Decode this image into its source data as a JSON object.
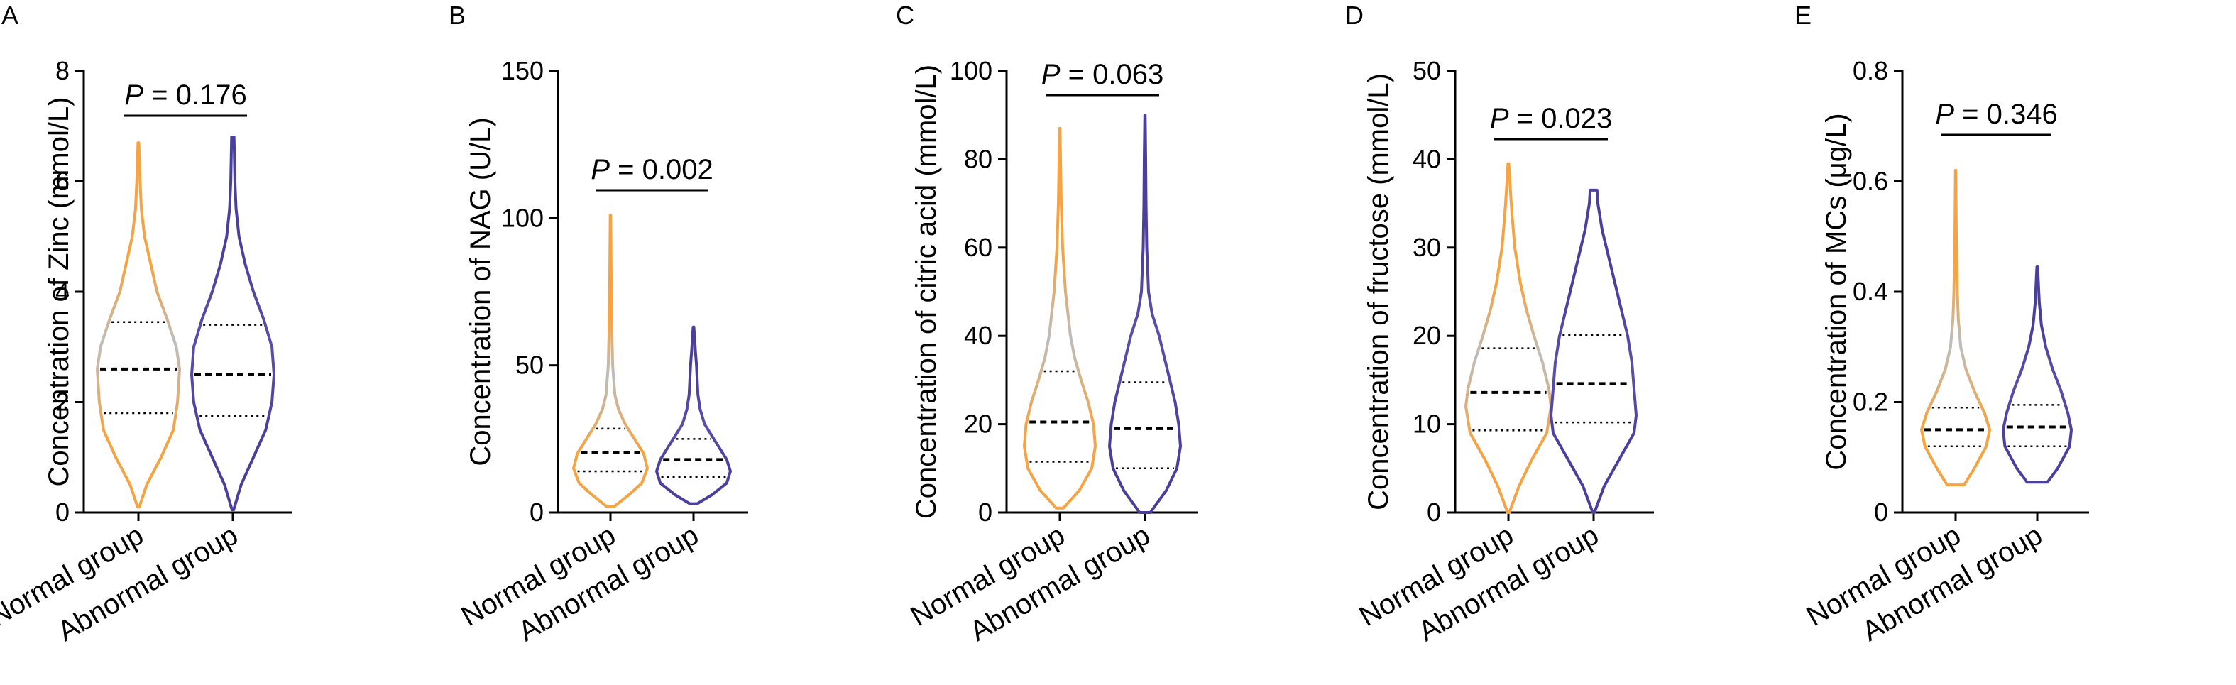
{
  "chart_data": [
    {
      "type": "violin",
      "panel": "A",
      "ylabel": "Concentration of Zinc (mmol/L)",
      "ylim": [
        0,
        8
      ],
      "yticks": [
        0,
        2,
        4,
        6,
        8
      ],
      "categories": [
        "Normal group",
        "Abnormal group"
      ],
      "colors": [
        "#F6A343",
        "#4B3F9E"
      ],
      "annotation": {
        "italic": "P",
        "text": " = 0.176"
      },
      "series": [
        {
          "min": 0.1,
          "max": 6.7,
          "q1": 1.8,
          "median": 2.6,
          "q3": 3.45,
          "profile": [
            [
              0.1,
              0.02
            ],
            [
              0.5,
              0.2
            ],
            [
              1.0,
              0.55
            ],
            [
              1.5,
              0.85
            ],
            [
              2.0,
              0.95
            ],
            [
              2.6,
              1.0
            ],
            [
              3.0,
              0.92
            ],
            [
              3.5,
              0.7
            ],
            [
              4.0,
              0.45
            ],
            [
              4.5,
              0.3
            ],
            [
              5.0,
              0.15
            ],
            [
              5.5,
              0.07
            ],
            [
              6.0,
              0.04
            ],
            [
              6.7,
              0.01
            ]
          ]
        },
        {
          "min": 0.05,
          "max": 6.8,
          "q1": 1.75,
          "median": 2.5,
          "q3": 3.4,
          "profile": [
            [
              0.05,
              0.02
            ],
            [
              0.5,
              0.2
            ],
            [
              1.0,
              0.5
            ],
            [
              1.5,
              0.8
            ],
            [
              2.0,
              0.95
            ],
            [
              2.5,
              1.0
            ],
            [
              3.0,
              0.95
            ],
            [
              3.5,
              0.75
            ],
            [
              4.0,
              0.5
            ],
            [
              4.5,
              0.3
            ],
            [
              5.0,
              0.15
            ],
            [
              5.5,
              0.08
            ],
            [
              6.0,
              0.05
            ],
            [
              6.8,
              0.03
            ]
          ]
        }
      ]
    },
    {
      "type": "violin",
      "panel": "B",
      "ylabel": "Concentration of NAG (U/L)",
      "ylim": [
        0,
        150
      ],
      "yticks": [
        0,
        50,
        100,
        150
      ],
      "categories": [
        "Normal group",
        "Abnormal group"
      ],
      "colors": [
        "#F6A343",
        "#4B3F9E"
      ],
      "annotation": {
        "italic": "P",
        "text": " = 0.002"
      },
      "series": [
        {
          "min": 2,
          "max": 101,
          "q1": 14,
          "median": 20.5,
          "q3": 28.5,
          "profile": [
            [
              2,
              0.1
            ],
            [
              6,
              0.5
            ],
            [
              10,
              0.85
            ],
            [
              15,
              1.0
            ],
            [
              20,
              0.9
            ],
            [
              25,
              0.65
            ],
            [
              30,
              0.4
            ],
            [
              35,
              0.22
            ],
            [
              40,
              0.12
            ],
            [
              50,
              0.06
            ],
            [
              60,
              0.04
            ],
            [
              80,
              0.02
            ],
            [
              101,
              0.005
            ]
          ]
        },
        {
          "min": 3,
          "max": 63,
          "q1": 12,
          "median": 18,
          "q3": 25,
          "profile": [
            [
              3,
              0.1
            ],
            [
              6,
              0.5
            ],
            [
              10,
              0.9
            ],
            [
              14,
              1.0
            ],
            [
              18,
              0.9
            ],
            [
              22,
              0.7
            ],
            [
              26,
              0.5
            ],
            [
              30,
              0.3
            ],
            [
              35,
              0.18
            ],
            [
              40,
              0.12
            ],
            [
              45,
              0.1
            ],
            [
              50,
              0.08
            ],
            [
              55,
              0.05
            ],
            [
              63,
              0.01
            ]
          ]
        }
      ]
    },
    {
      "type": "violin",
      "panel": "C",
      "ylabel": "Concentration of citric acid (mmol/L)",
      "ylim": [
        0,
        100
      ],
      "yticks": [
        0,
        20,
        40,
        60,
        80,
        100
      ],
      "categories": [
        "Normal group",
        "Abnormal group"
      ],
      "colors": [
        "#F6A343",
        "#4B3F9E"
      ],
      "annotation": {
        "italic": "P",
        "text": " = 0.063"
      },
      "series": [
        {
          "min": 1,
          "max": 87,
          "q1": 11.5,
          "median": 20.5,
          "q3": 32,
          "profile": [
            [
              1,
              0.1
            ],
            [
              5,
              0.55
            ],
            [
              10,
              0.9
            ],
            [
              15,
              1.0
            ],
            [
              20,
              0.95
            ],
            [
              25,
              0.8
            ],
            [
              30,
              0.6
            ],
            [
              35,
              0.42
            ],
            [
              40,
              0.3
            ],
            [
              50,
              0.16
            ],
            [
              60,
              0.08
            ],
            [
              70,
              0.04
            ],
            [
              80,
              0.02
            ],
            [
              87,
              0.005
            ]
          ]
        },
        {
          "min": 0,
          "max": 90,
          "q1": 10,
          "median": 19,
          "q3": 29.5,
          "profile": [
            [
              0,
              0.15
            ],
            [
              5,
              0.6
            ],
            [
              10,
              0.9
            ],
            [
              15,
              1.0
            ],
            [
              20,
              0.95
            ],
            [
              25,
              0.85
            ],
            [
              30,
              0.7
            ],
            [
              35,
              0.55
            ],
            [
              40,
              0.4
            ],
            [
              45,
              0.2
            ],
            [
              50,
              0.1
            ],
            [
              60,
              0.05
            ],
            [
              70,
              0.03
            ],
            [
              80,
              0.02
            ],
            [
              90,
              0.005
            ]
          ]
        }
      ]
    },
    {
      "type": "violin",
      "panel": "D",
      "ylabel": "Concentration of fructose (mmol/L)",
      "ylim": [
        0,
        50
      ],
      "yticks": [
        0,
        10,
        20,
        30,
        40,
        50
      ],
      "categories": [
        "Normal group",
        "Abnormal group"
      ],
      "colors": [
        "#F6A343",
        "#4B3F9E"
      ],
      "annotation": {
        "italic": "P",
        "text": " = 0.023"
      },
      "series": [
        {
          "min": 0,
          "max": 39.5,
          "q1": 9.3,
          "median": 13.6,
          "q3": 18.6,
          "profile": [
            [
              0,
              0.02
            ],
            [
              3,
              0.25
            ],
            [
              6,
              0.55
            ],
            [
              9,
              0.9
            ],
            [
              12,
              1.0
            ],
            [
              14,
              0.95
            ],
            [
              17,
              0.8
            ],
            [
              20,
              0.6
            ],
            [
              23,
              0.42
            ],
            [
              26,
              0.28
            ],
            [
              30,
              0.15
            ],
            [
              34,
              0.08
            ],
            [
              37,
              0.04
            ],
            [
              39.5,
              0.01
            ]
          ]
        },
        {
          "min": 0,
          "max": 36.5,
          "q1": 10.2,
          "median": 14.6,
          "q3": 20.1,
          "profile": [
            [
              0,
              0.02
            ],
            [
              3,
              0.25
            ],
            [
              6,
              0.6
            ],
            [
              9,
              0.95
            ],
            [
              11,
              1.0
            ],
            [
              14,
              0.95
            ],
            [
              17,
              0.9
            ],
            [
              20,
              0.8
            ],
            [
              23,
              0.65
            ],
            [
              26,
              0.5
            ],
            [
              29,
              0.35
            ],
            [
              32,
              0.2
            ],
            [
              35,
              0.1
            ],
            [
              36.5,
              0.08
            ]
          ]
        }
      ]
    },
    {
      "type": "violin",
      "panel": "E",
      "ylabel": "Concentration of MCs (μg/L)",
      "ylim": [
        0,
        0.8
      ],
      "yticks": [
        0,
        0.2,
        0.4,
        0.6,
        0.8
      ],
      "categories": [
        "Normal group",
        "Abnormal group"
      ],
      "colors": [
        "#F6A343",
        "#4B3F9E"
      ],
      "annotation": {
        "italic": "P",
        "text": " = 0.346"
      },
      "series": [
        {
          "min": 0.05,
          "max": 0.62,
          "q1": 0.12,
          "median": 0.15,
          "q3": 0.19,
          "profile": [
            [
              0.05,
              0.25
            ],
            [
              0.08,
              0.55
            ],
            [
              0.12,
              0.9
            ],
            [
              0.15,
              1.0
            ],
            [
              0.18,
              0.85
            ],
            [
              0.22,
              0.55
            ],
            [
              0.26,
              0.3
            ],
            [
              0.3,
              0.15
            ],
            [
              0.35,
              0.08
            ],
            [
              0.4,
              0.05
            ],
            [
              0.5,
              0.02
            ],
            [
              0.62,
              0.005
            ]
          ]
        },
        {
          "min": 0.055,
          "max": 0.445,
          "q1": 0.12,
          "median": 0.155,
          "q3": 0.195,
          "profile": [
            [
              0.055,
              0.3
            ],
            [
              0.08,
              0.6
            ],
            [
              0.12,
              0.95
            ],
            [
              0.15,
              1.0
            ],
            [
              0.18,
              0.9
            ],
            [
              0.22,
              0.7
            ],
            [
              0.26,
              0.45
            ],
            [
              0.3,
              0.25
            ],
            [
              0.34,
              0.12
            ],
            [
              0.38,
              0.06
            ],
            [
              0.445,
              0.01
            ]
          ]
        }
      ]
    }
  ]
}
